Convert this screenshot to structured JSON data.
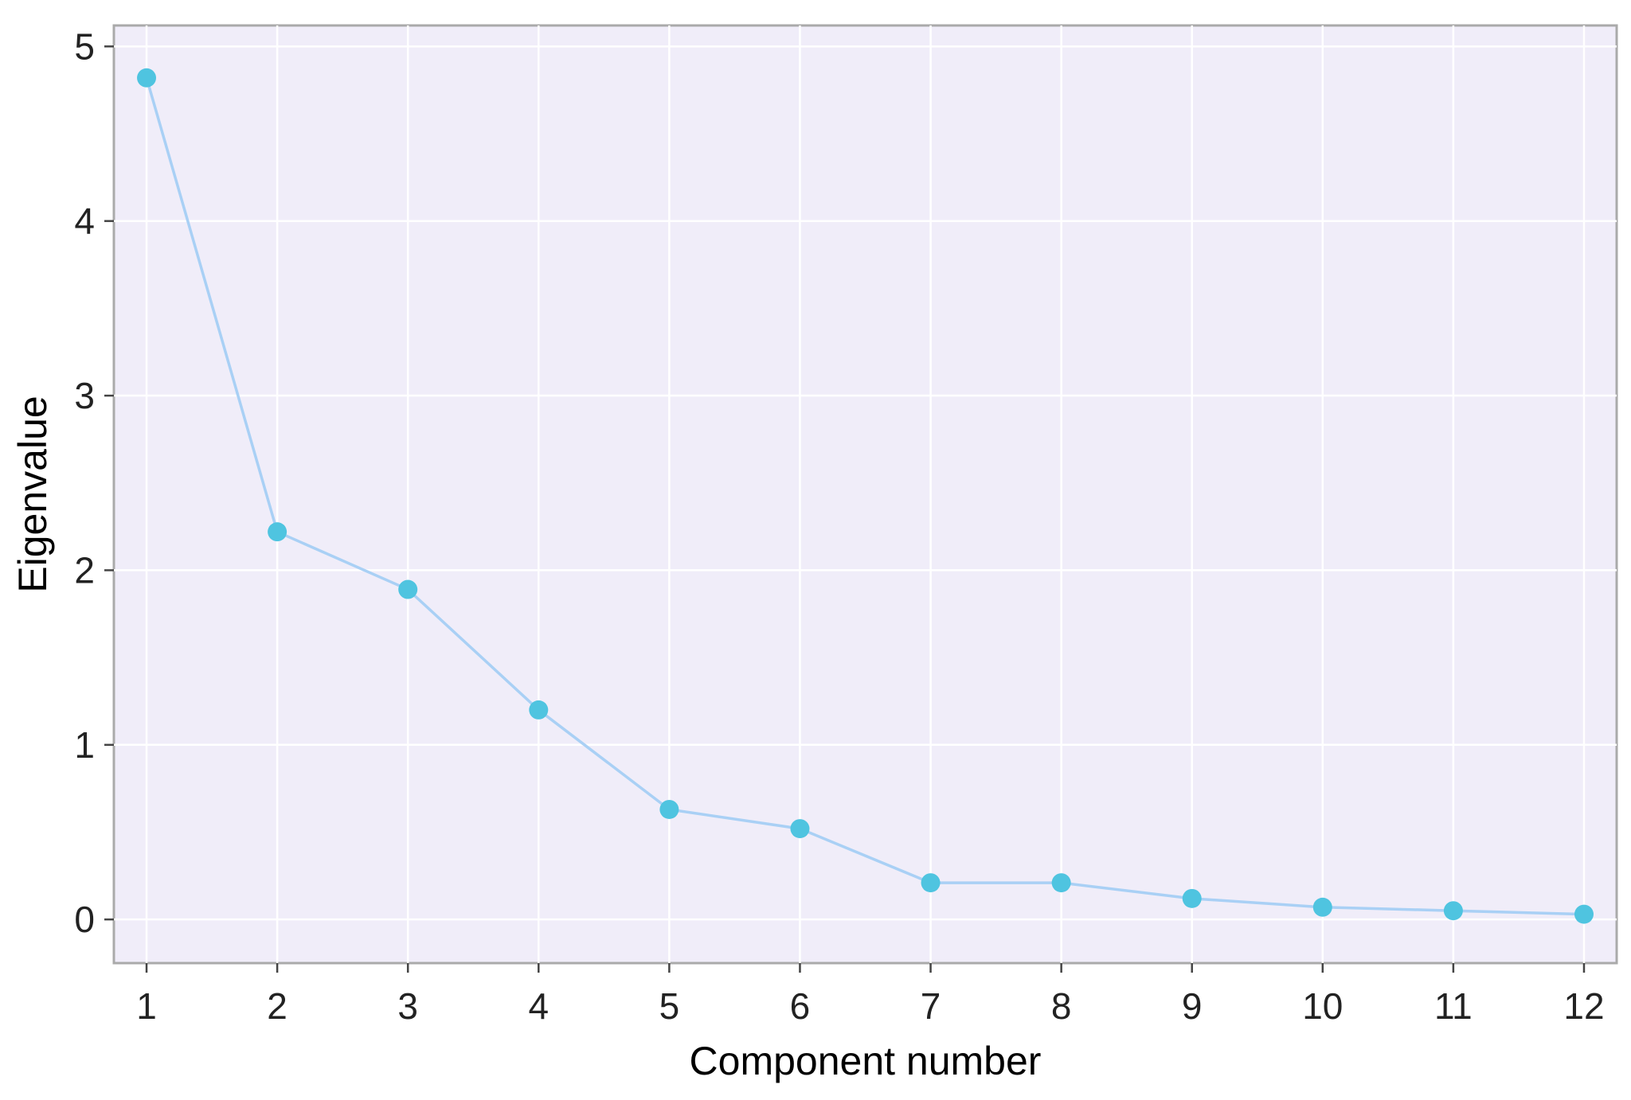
{
  "chart_data": {
    "type": "line",
    "title": "",
    "xlabel": "Component number",
    "ylabel": "Eigenvalue",
    "x": [
      1,
      2,
      3,
      4,
      5,
      6,
      7,
      8,
      9,
      10,
      11,
      12
    ],
    "x_tick_labels": [
      "1",
      "2",
      "3",
      "4",
      "5",
      "6",
      "7",
      "8",
      "9",
      "10",
      "11",
      "12"
    ],
    "y_tick_labels": [
      "0",
      "1",
      "2",
      "3",
      "4",
      "5"
    ],
    "y_ticks": [
      0,
      1,
      2,
      3,
      4,
      5
    ],
    "series": [
      {
        "values": [
          4.82,
          2.22,
          1.89,
          1.2,
          0.63,
          0.52,
          0.21,
          0.21,
          0.12,
          0.07,
          0.05,
          0.03
        ]
      }
    ],
    "xlim": [
      0.75,
      12.25
    ],
    "ylim": [
      -0.25,
      5.12
    ],
    "grid": true,
    "legend": "none",
    "colors": {
      "panel_background": "#f0edf9",
      "panel_border": "#aaaaaa",
      "grid": "#ffffff",
      "line": "#a9d0f5",
      "marker": "#4fc4e0"
    }
  }
}
